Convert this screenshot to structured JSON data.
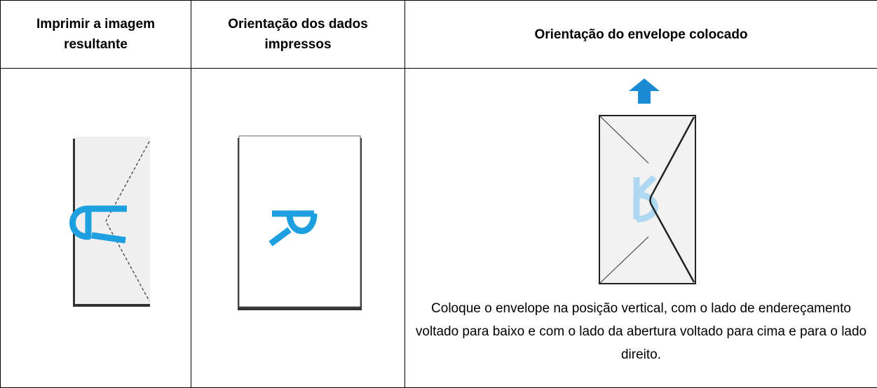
{
  "table": {
    "headers": [
      "Imprimir a imagem resultante",
      "Orientação dos dados impressos",
      "Orientação do envelope colocado"
    ],
    "rows": [
      [
        "Coloque o envelope na posição vertical, com o lado de endereçamento voltado para baixo e com o lado da abertura voltado para cima e para o lado direito."
      ]
    ]
  }
}
